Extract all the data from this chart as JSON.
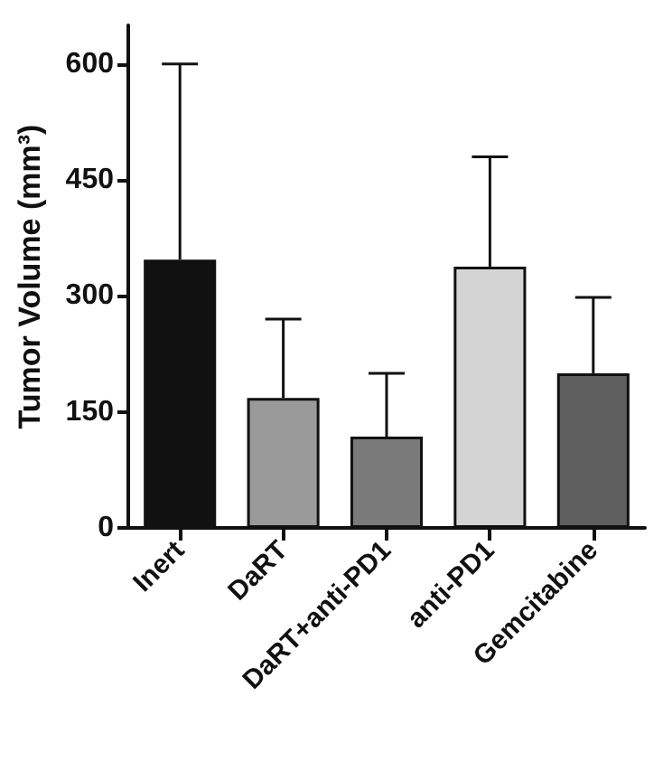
{
  "chart_data": {
    "type": "bar",
    "ylabel": "Tumor Volume (mm³)",
    "categories": [
      "Inert",
      "DaRT",
      "DaRT+anti-PD1",
      "anti-PD1",
      "Gemcitabine"
    ],
    "values": [
      347,
      168,
      118,
      338,
      200
    ],
    "colors": [
      "#111111",
      "#9a9a9a",
      "#7a7a7a",
      "#d4d4d4",
      "#5f5f5f"
    ],
    "errors": [
      [
        347,
        600
      ],
      [
        168,
        270
      ],
      [
        118,
        200
      ],
      [
        338,
        480
      ],
      [
        200,
        298
      ]
    ],
    "ylim": [
      0,
      650
    ],
    "yticks": [
      0,
      150,
      300,
      450,
      600
    ],
    "grid": false
  }
}
